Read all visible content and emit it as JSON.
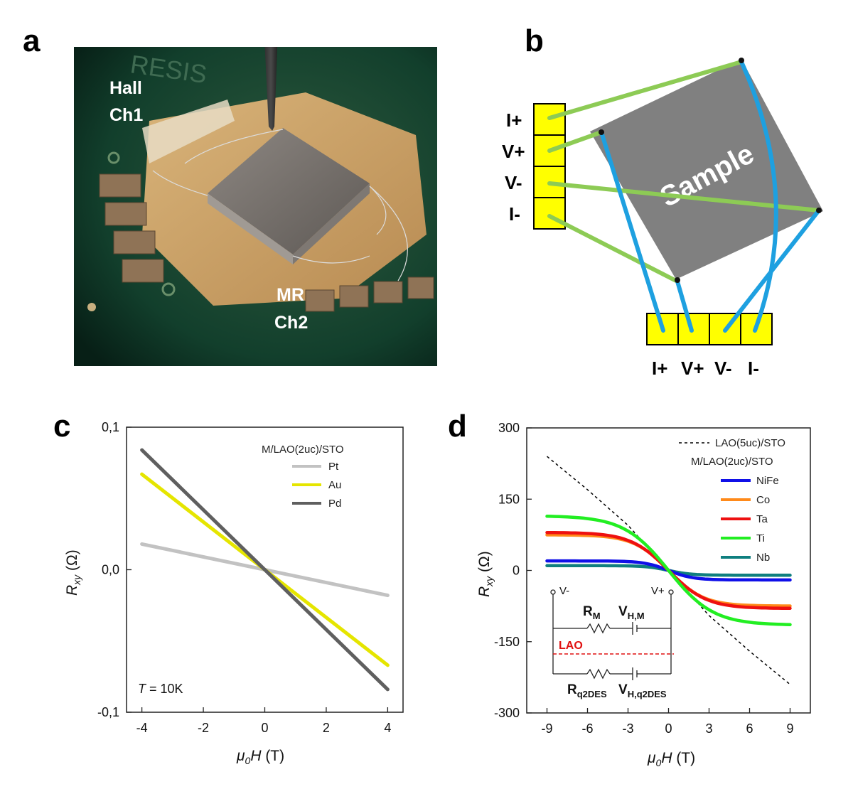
{
  "panels": {
    "a": {
      "letter": "a",
      "labels": {
        "hall_line1": "Hall",
        "hall_line2": "Ch1",
        "mr_line1": "MR",
        "mr_line2": "Ch2",
        "board_text": "RESIS"
      },
      "colors": {
        "pcb": "#0f3a2a",
        "copper": "#c9a36b",
        "sample": "#6f6a66"
      }
    },
    "b": {
      "letter": "b",
      "sample_label": "Sample",
      "left_pins": [
        "I+",
        "V+",
        "V-",
        "I-"
      ],
      "bottom_pins": [
        "I+",
        "V+",
        "V-",
        "I-"
      ],
      "colors": {
        "pad": "#ffff00",
        "sample": "#808080",
        "green_wire": "#8dcb55",
        "blue_wire": "#1ea0e0"
      }
    },
    "c": {
      "letter": "c"
    },
    "d": {
      "letter": "d",
      "circuit": {
        "v_minus": "V-",
        "v_plus": "V+",
        "r_m": "R",
        "r_m_sub": "M",
        "v_hm": "V",
        "v_hm_sub": "H,M",
        "lao": "LAO",
        "r_q": "R",
        "r_q_sub": "q2DES",
        "v_hq": "V",
        "v_hq_sub": "H,q2DES"
      }
    }
  },
  "chart_data": [
    {
      "id": "c",
      "type": "line",
      "xlabel_mu": "μ",
      "xlabel_sub": "0",
      "xlabel_var": "H",
      "xlabel_unit": " (T)",
      "ylabel_var": "R",
      "ylabel_sub": "xy",
      "ylabel_unit": " (Ω)",
      "xlim": [
        -4.5,
        4.5
      ],
      "ylim": [
        -0.1,
        0.1
      ],
      "xticks": [
        -4,
        -2,
        0,
        2,
        4
      ],
      "yticks": [
        0.1,
        0.0,
        -0.1
      ],
      "ytick_labels": [
        "0,1",
        "0,0",
        "-0,1"
      ],
      "legend_title": "M/LAO(2uc)/STO",
      "annotation_var": "T",
      "annotation_rest": " = 10K",
      "series": [
        {
          "name": "Pt",
          "color": "#c2c2c2",
          "slope": -0.0045,
          "x": [
            -4,
            4
          ]
        },
        {
          "name": "Au",
          "color": "#e5e500",
          "slope": -0.01675,
          "x": [
            -4,
            4
          ]
        },
        {
          "name": "Pd",
          "color": "#5f5f5f",
          "slope": -0.021,
          "x": [
            -4,
            4
          ]
        }
      ]
    },
    {
      "id": "d",
      "type": "line",
      "xlabel_mu": "μ",
      "xlabel_sub": "0",
      "xlabel_var": "H",
      "xlabel_unit": " (T)",
      "ylabel_var": "R",
      "ylabel_sub": "xy",
      "ylabel_unit": " (Ω)",
      "xlim": [
        -10.5,
        10.5
      ],
      "ylim": [
        -300,
        300
      ],
      "xticks": [
        -9,
        -6,
        -3,
        0,
        3,
        6,
        9
      ],
      "yticks": [
        300,
        150,
        0,
        -150,
        -300
      ],
      "reference": {
        "name": "LAO(5uc)/STO",
        "color": "#000000",
        "x": [
          -9,
          -6,
          -3,
          0,
          3,
          6,
          9
        ],
        "y": [
          240,
          170,
          95,
          0,
          -95,
          -170,
          -240
        ]
      },
      "legend_title": "M/LAO(2uc)/STO",
      "series": [
        {
          "name": "NiFe",
          "color": "#1010e8",
          "amplitude": 20,
          "scale": 1.8
        },
        {
          "name": "Co",
          "color": "#ff8a1a",
          "amplitude": 75,
          "scale": 2.6
        },
        {
          "name": "Ta",
          "color": "#ee1010",
          "amplitude": 80,
          "scale": 2.8
        },
        {
          "name": "Ti",
          "color": "#22ee22",
          "amplitude": 115,
          "scale": 3.3
        },
        {
          "name": "Nb",
          "color": "#0f7f7f",
          "amplitude": 10,
          "scale": 1.6
        }
      ]
    }
  ]
}
